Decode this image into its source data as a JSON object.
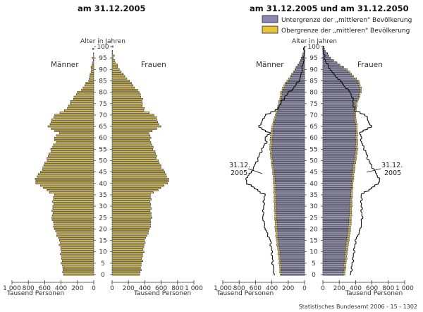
{
  "chart_data": [
    {
      "type": "bar",
      "title": "am 31.12.2005",
      "axis_label_center": "Alter in Jahren",
      "left_label": "Männer",
      "right_label": "Frauen",
      "x_unit_label": "Tausend Personen",
      "x_ticks_left": [
        "1 000",
        "800",
        "600",
        "400",
        "200",
        "0"
      ],
      "x_ticks_right": [
        "0",
        "200",
        "400",
        "600",
        "800",
        "1 000"
      ],
      "age_ticks": [
        "0",
        "5",
        "10",
        "15",
        "20",
        "25",
        "30",
        "35",
        "40",
        "45",
        "50",
        "55",
        "60",
        "65",
        "70",
        "75",
        "80",
        "85",
        "90",
        "95",
        "100"
      ],
      "xlim": [
        0,
        1000
      ],
      "age_anchors": [
        0,
        5,
        10,
        15,
        20,
        25,
        30,
        35,
        40,
        42,
        45,
        50,
        55,
        58,
        60,
        62,
        65,
        67,
        70,
        72,
        75,
        78,
        80,
        82,
        85,
        87,
        88,
        90,
        93,
        95,
        98,
        100
      ],
      "men_thousands": [
        370,
        390,
        400,
        420,
        480,
        510,
        500,
        490,
        700,
        720,
        650,
        580,
        520,
        470,
        480,
        430,
        560,
        520,
        480,
        350,
        290,
        240,
        190,
        130,
        70,
        45,
        40,
        32,
        15,
        8,
        2,
        0
      ],
      "women_thousands": [
        340,
        360,
        380,
        400,
        460,
        480,
        470,
        470,
        680,
        690,
        640,
        560,
        510,
        470,
        470,
        450,
        590,
        560,
        520,
        390,
        370,
        360,
        330,
        280,
        210,
        160,
        130,
        90,
        40,
        20,
        5,
        0
      ]
    },
    {
      "type": "bar",
      "title": "am 31.12.2005 und am 31.12.2050",
      "axis_label_center": "Alter in Jahren",
      "left_label": "Männer",
      "right_label": "Frauen",
      "x_unit_label": "Tausend Personen",
      "legend": [
        {
          "name": "Untergrenze der „mittleren\" Bevölkerung",
          "color": "#8a86b4"
        },
        {
          "name": "Obergrenze der „mittleren\" Bevölkerung",
          "color": "#e8c43a"
        }
      ],
      "annotation_left": [
        "31.12.",
        "2005"
      ],
      "annotation_right": [
        "31.12.",
        "2005"
      ],
      "x_ticks_left": [
        "1 000",
        "800",
        "600",
        "400",
        "200",
        "0"
      ],
      "x_ticks_right": [
        "0",
        "200",
        "400",
        "600",
        "800",
        "1 000"
      ],
      "age_ticks": [
        "0",
        "5",
        "10",
        "15",
        "20",
        "25",
        "30",
        "35",
        "40",
        "45",
        "50",
        "55",
        "60",
        "65",
        "70",
        "75",
        "80",
        "85",
        "90",
        "95",
        "100"
      ],
      "xlim": [
        0,
        1000
      ],
      "age_anchors": [
        0,
        5,
        10,
        15,
        20,
        25,
        30,
        35,
        40,
        45,
        50,
        55,
        60,
        65,
        70,
        75,
        78,
        80,
        82,
        85,
        87,
        90,
        93,
        95,
        98,
        100
      ],
      "men_lower": [
        280,
        290,
        300,
        320,
        330,
        340,
        345,
        350,
        355,
        370,
        390,
        400,
        390,
        380,
        340,
        300,
        280,
        270,
        250,
        200,
        160,
        110,
        60,
        35,
        10,
        0
      ],
      "men_upper": [
        300,
        310,
        325,
        345,
        360,
        365,
        370,
        375,
        380,
        390,
        410,
        425,
        420,
        400,
        360,
        320,
        300,
        290,
        270,
        220,
        175,
        120,
        65,
        38,
        12,
        0
      ],
      "women_lower": [
        250,
        260,
        270,
        290,
        310,
        320,
        330,
        340,
        350,
        360,
        380,
        400,
        400,
        400,
        380,
        400,
        430,
        450,
        450,
        420,
        360,
        280,
        160,
        90,
        30,
        5
      ],
      "women_upper": [
        270,
        285,
        300,
        320,
        340,
        350,
        355,
        360,
        370,
        385,
        405,
        425,
        425,
        420,
        400,
        420,
        450,
        470,
        470,
        440,
        380,
        300,
        170,
        95,
        32,
        5
      ],
      "men_2005_outline_anchors": "same as first pyramid (men_thousands)",
      "women_2005_outline_anchors": "same as first pyramid (women_thousands)"
    }
  ],
  "source": "Statistisches Bundesamt 2006 - 15 - 1302"
}
